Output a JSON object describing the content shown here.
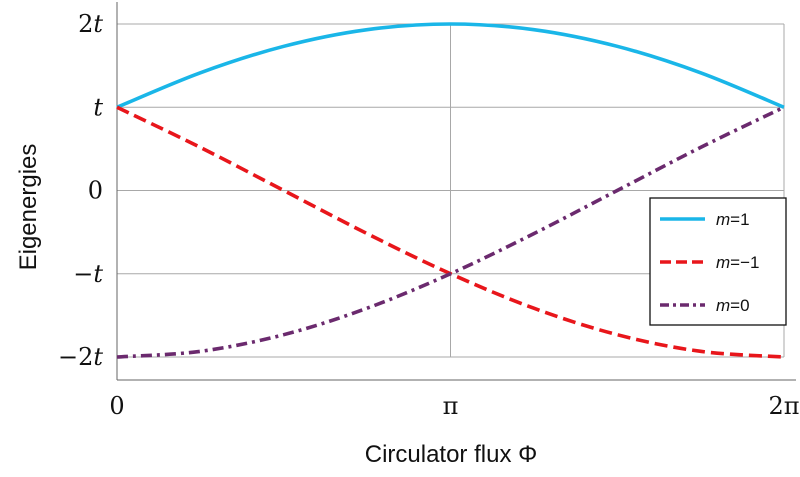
{
  "chart_data": {
    "type": "line",
    "xlabel": "Circulator flux Φ",
    "ylabel": "Eigenergies",
    "xlim": [
      0,
      6.283185307
    ],
    "ylim": [
      -2,
      2
    ],
    "x_ticks": [
      {
        "value": 0,
        "label": "0"
      },
      {
        "value": 3.141592654,
        "label": "π"
      },
      {
        "value": 6.283185307,
        "label": "2π"
      }
    ],
    "y_ticks": [
      {
        "value": 2,
        "label": "2t"
      },
      {
        "value": 1,
        "label": "t"
      },
      {
        "value": 0,
        "label": "0"
      },
      {
        "value": -1,
        "label": "−t"
      },
      {
        "value": -2,
        "label": "−2t"
      }
    ],
    "grid": true,
    "legend_position": "right",
    "series": [
      {
        "name": "m=1",
        "label_var": "m",
        "label_val": "=1",
        "color": "#1ab6e8",
        "style": "solid",
        "x": [
          0,
          0.785,
          1.571,
          2.356,
          3.142,
          3.927,
          4.712,
          5.498,
          6.283
        ],
        "values": [
          1.0,
          1.414,
          1.732,
          1.932,
          2.0,
          1.932,
          1.732,
          1.414,
          1.0
        ]
      },
      {
        "name": "m=−1",
        "label_var": "m",
        "label_val": "=−1",
        "color": "#e8161b",
        "style": "dashed",
        "x": [
          0,
          0.785,
          1.571,
          2.356,
          3.142,
          3.927,
          4.712,
          5.498,
          6.283
        ],
        "values": [
          1.0,
          0.518,
          0.0,
          -0.518,
          -1.0,
          -1.414,
          -1.732,
          -1.932,
          -2.0
        ]
      },
      {
        "name": "m=0",
        "label_var": "m",
        "label_val": "=0",
        "color": "#6b2a6e",
        "style": "dashdot",
        "x": [
          0,
          0.785,
          1.571,
          2.356,
          3.142,
          3.927,
          4.712,
          5.498,
          6.283
        ],
        "values": [
          -2.0,
          -1.932,
          -1.732,
          -1.414,
          -1.0,
          -0.518,
          0.0,
          0.518,
          1.0
        ]
      }
    ]
  }
}
